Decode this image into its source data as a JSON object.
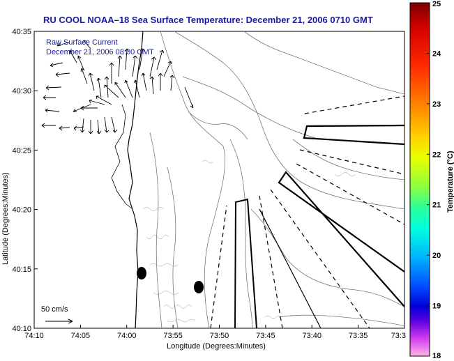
{
  "title": "RU COOL  NOAA–18  Sea Surface Temperature:  December 21, 2006 0710 GMT",
  "legend": {
    "line1": "Raw Surface Current",
    "line2": "December 21, 2006 08:00 GMT"
  },
  "scale_label": "50 cm/s",
  "axes": {
    "xlabel": "Longitude (Degrees:Minutes)",
    "ylabel": "Latitude (Degrees:Minutes)",
    "xticks": [
      "74:10",
      "74:05",
      "74:00",
      "73:55",
      "73:50",
      "73:45",
      "73:40",
      "73:35",
      "73:3"
    ],
    "yticks": [
      "40:35",
      "40:30",
      "40:25",
      "40:20",
      "40:15",
      "40:10"
    ]
  },
  "colorbar": {
    "label": "Temperature (°C)",
    "ticks": [
      "25",
      "24",
      "23",
      "22",
      "21",
      "20",
      "19",
      "18"
    ],
    "min": 18,
    "max": 25
  }
}
